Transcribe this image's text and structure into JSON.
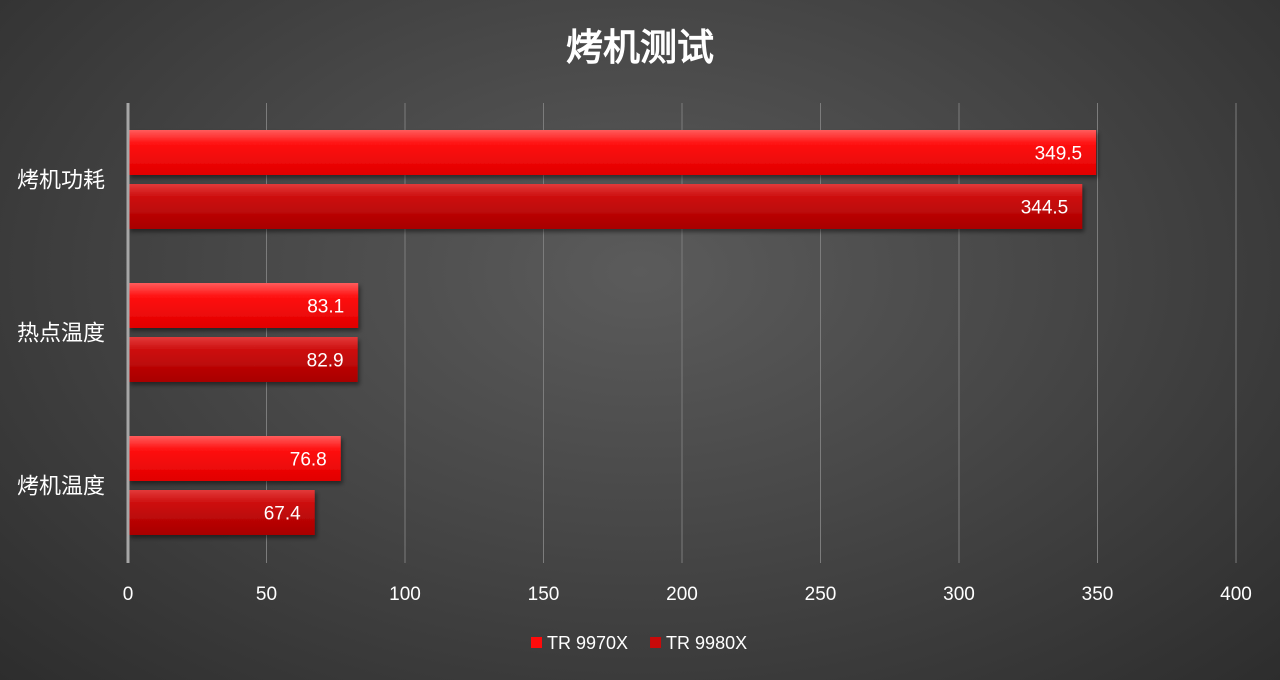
{
  "chart_data": {
    "type": "bar",
    "orientation": "horizontal",
    "title": "烤机测试",
    "categories": [
      "烤机功耗",
      "热点温度",
      "烤机温度"
    ],
    "series": [
      {
        "name": "TR 9970X",
        "values": [
          349.5,
          83.1,
          76.8
        ],
        "color": "#ff0b0b"
      },
      {
        "name": "TR 9980X",
        "values": [
          344.5,
          82.9,
          67.4
        ],
        "color": "#c80a0a"
      }
    ],
    "xlim": [
      0,
      400
    ],
    "xticks": [
      0,
      50,
      100,
      150,
      200,
      250,
      300,
      350,
      400
    ],
    "data_labels": true,
    "grid": "vertical",
    "legend": "bottom"
  }
}
